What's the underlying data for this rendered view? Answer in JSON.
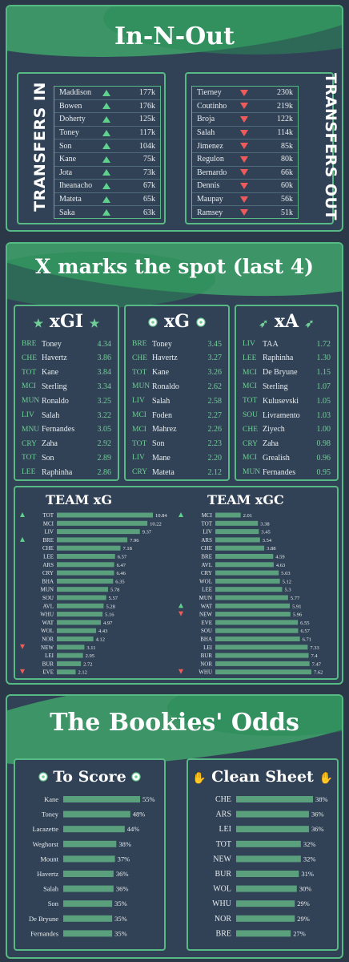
{
  "sections": {
    "inout_title": "In-N-Out",
    "xmarks_title": "X marks the spot (last 4)",
    "bookies_title": "The Bookies' Odds"
  },
  "transfers_in": {
    "label": "TRANSFERS IN",
    "rows": [
      {
        "name": "Maddison",
        "value": "177k"
      },
      {
        "name": "Bowen",
        "value": "176k"
      },
      {
        "name": "Doherty",
        "value": "125k"
      },
      {
        "name": "Toney",
        "value": "117k"
      },
      {
        "name": "Son",
        "value": "104k"
      },
      {
        "name": "Kane",
        "value": "75k"
      },
      {
        "name": "Jota",
        "value": "73k"
      },
      {
        "name": "Iheanacho",
        "value": "67k"
      },
      {
        "name": "Mateta",
        "value": "65k"
      },
      {
        "name": "Saka",
        "value": "63k"
      }
    ]
  },
  "transfers_out": {
    "label": "TRANSFERS OUT",
    "rows": [
      {
        "name": "Tierney",
        "value": "230k"
      },
      {
        "name": "Coutinho",
        "value": "219k"
      },
      {
        "name": "Broja",
        "value": "122k"
      },
      {
        "name": "Salah",
        "value": "114k"
      },
      {
        "name": "Jimenez",
        "value": "85k"
      },
      {
        "name": "Regulon",
        "value": "80k"
      },
      {
        "name": "Bernardo",
        "value": "66k"
      },
      {
        "name": "Dennis",
        "value": "60k"
      },
      {
        "name": "Maupay",
        "value": "56k"
      },
      {
        "name": "Ramsey",
        "value": "51k"
      }
    ]
  },
  "xgi": {
    "title": "xGI",
    "rows": [
      {
        "team": "BRE",
        "name": "Toney",
        "value": "4.34"
      },
      {
        "team": "CHE",
        "name": "Havertz",
        "value": "3.86"
      },
      {
        "team": "TOT",
        "name": "Kane",
        "value": "3.84"
      },
      {
        "team": "MCI",
        "name": "Sterling",
        "value": "3.34"
      },
      {
        "team": "MUN",
        "name": "Ronaldo",
        "value": "3.25"
      },
      {
        "team": "LIV",
        "name": "Salah",
        "value": "3.22"
      },
      {
        "team": "MNU",
        "name": "Fernandes",
        "value": "3.05"
      },
      {
        "team": "CRY",
        "name": "Zaha",
        "value": "2.92"
      },
      {
        "team": "TOT",
        "name": "Son",
        "value": "2.89"
      },
      {
        "team": "LEE",
        "name": "Raphinha",
        "value": "2.86"
      }
    ]
  },
  "xg": {
    "title": "xG",
    "rows": [
      {
        "team": "BRE",
        "name": "Toney",
        "value": "3.45"
      },
      {
        "team": "CHE",
        "name": "Havertz",
        "value": "3.27"
      },
      {
        "team": "TOT",
        "name": "Kane",
        "value": "3.26"
      },
      {
        "team": "MUN",
        "name": "Ronaldo",
        "value": "2.62"
      },
      {
        "team": "LIV",
        "name": "Salah",
        "value": "2.58"
      },
      {
        "team": "MCI",
        "name": "Foden",
        "value": "2.27"
      },
      {
        "team": "MCI",
        "name": "Mahrez",
        "value": "2.26"
      },
      {
        "team": "TOT",
        "name": "Son",
        "value": "2.23"
      },
      {
        "team": "LIV",
        "name": "Mane",
        "value": "2.20"
      },
      {
        "team": "CRY",
        "name": "Mateta",
        "value": "2.12"
      }
    ]
  },
  "xa": {
    "title": "xA",
    "rows": [
      {
        "team": "LIV",
        "name": "TAA",
        "value": "1.72"
      },
      {
        "team": "LEE",
        "name": "Raphinha",
        "value": "1.30"
      },
      {
        "team": "MCI",
        "name": "De Bryune",
        "value": "1.15"
      },
      {
        "team": "MCI",
        "name": "Sterling",
        "value": "1.07"
      },
      {
        "team": "TOT",
        "name": "Kulusevski",
        "value": "1.05"
      },
      {
        "team": "SOU",
        "name": "Livramento",
        "value": "1.03"
      },
      {
        "team": "CHE",
        "name": "Ziyech",
        "value": "1.00"
      },
      {
        "team": "CRY",
        "name": "Zaha",
        "value": "0.98"
      },
      {
        "team": "MCI",
        "name": "Grealish",
        "value": "0.96"
      },
      {
        "team": "MUN",
        "name": "Fernandes",
        "value": "0.95"
      }
    ]
  },
  "chart_data": [
    {
      "type": "bar",
      "orientation": "horizontal",
      "title": "TEAM xG",
      "categories": [
        "TOT",
        "MCI",
        "LIV",
        "BRE",
        "CHE",
        "LEE",
        "ARS",
        "CRY",
        "BHA",
        "MUN",
        "SOU",
        "AVL",
        "WHU",
        "WAT",
        "WOL",
        "NOR",
        "NEW",
        "LEI",
        "BUR",
        "EVE"
      ],
      "values": [
        10.84,
        10.22,
        9.37,
        7.96,
        7.18,
        6.57,
        6.47,
        6.46,
        6.35,
        5.78,
        5.57,
        5.28,
        5.16,
        4.97,
        4.43,
        4.12,
        3.11,
        2.95,
        2.72,
        2.12
      ],
      "labels": [
        "10.84",
        "10.22",
        "9.37",
        "7.96",
        "7.18",
        "6.57",
        "6.47",
        "6.46",
        "6.35",
        "5.78",
        "5.57",
        "5.28",
        "5.16",
        "4.97",
        "4.43",
        "4.12",
        "3.11",
        "2.95",
        "2.72",
        "2.12"
      ],
      "markers": {
        "TOT": "up",
        "BRE": "up",
        "NEW": "down",
        "EVE": "down"
      },
      "xlim": [
        0,
        10.84
      ]
    },
    {
      "type": "bar",
      "orientation": "horizontal",
      "title": "TEAM xGC",
      "categories": [
        "MCI",
        "TOT",
        "LIV",
        "ARS",
        "CHE",
        "BRE",
        "AVL",
        "CRY",
        "WOL",
        "LEE",
        "MUN",
        "WAT",
        "NEW",
        "EVE",
        "SOU",
        "BHA",
        "LEI",
        "BUR",
        "NOR",
        "WHU"
      ],
      "values": [
        2.01,
        3.38,
        3.45,
        3.54,
        3.88,
        4.59,
        4.63,
        5.03,
        5.12,
        5.3,
        5.77,
        5.91,
        5.96,
        6.55,
        6.57,
        6.71,
        7.33,
        7.4,
        7.47,
        7.62
      ],
      "labels": [
        "2.01",
        "3.38",
        "3.45",
        "3.54",
        "3.88",
        "4.59",
        "4.63",
        "5.03",
        "5.12",
        "5.3",
        "5.77",
        "5.91",
        "5.96",
        "6.55",
        "6.57",
        "6.71",
        "7.33",
        "7.4",
        "7.47",
        "7.62"
      ],
      "markers": {
        "MCI": "up",
        "WAT": "up",
        "NEW": "down",
        "WHU": "down"
      },
      "xlim": [
        0,
        7.62
      ]
    },
    {
      "type": "bar",
      "orientation": "horizontal",
      "title": "To Score",
      "categories": [
        "Kane",
        "Toney",
        "Lacazette",
        "Weghorst",
        "Mount",
        "Havertz",
        "Salah",
        "Son",
        "De Bryune",
        "Fernandes"
      ],
      "values": [
        55,
        48,
        44,
        38,
        37,
        36,
        36,
        35,
        35,
        35
      ],
      "labels": [
        "55%",
        "48%",
        "44%",
        "38%",
        "37%",
        "36%",
        "36%",
        "35%",
        "35%",
        "35%"
      ],
      "xlim": [
        0,
        55
      ]
    },
    {
      "type": "bar",
      "orientation": "horizontal",
      "title": "Clean Sheet",
      "categories": [
        "CHE",
        "ARS",
        "LEI",
        "TOT",
        "NEW",
        "BUR",
        "WOL",
        "WHU",
        "NOR",
        "BRE"
      ],
      "values": [
        38,
        36,
        36,
        32,
        32,
        31,
        30,
        29,
        29,
        27
      ],
      "labels": [
        "38%",
        "36%",
        "36%",
        "32%",
        "32%",
        "31%",
        "30%",
        "29%",
        "29%",
        "27%"
      ],
      "xlim": [
        0,
        38
      ]
    }
  ],
  "colors": {
    "background": "#2a3848",
    "panel": "#324256",
    "accent": "#57b983",
    "bar": "#5aa07d",
    "up": "#5ed28c",
    "down": "#ef5a5a"
  }
}
